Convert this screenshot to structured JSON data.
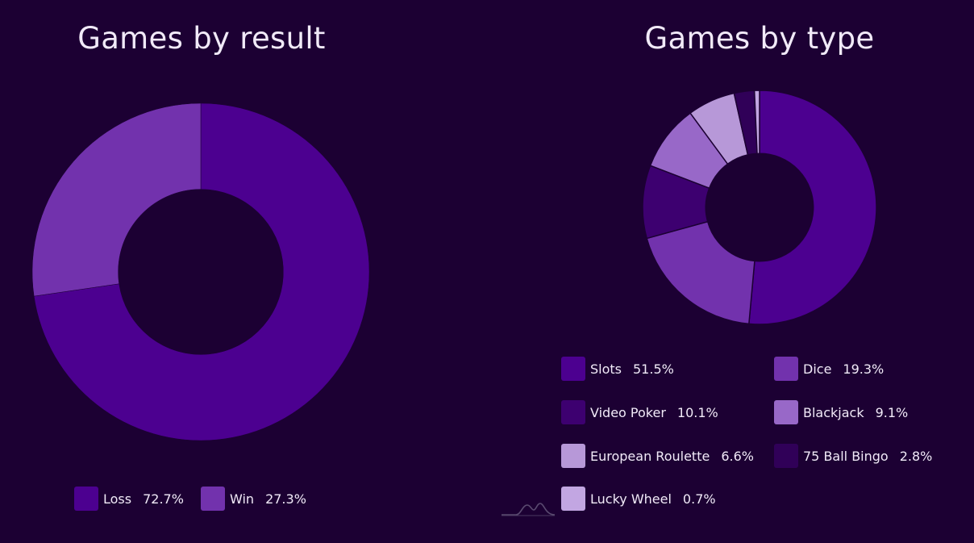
{
  "colors": {
    "background": "#1c0033",
    "text": "#f1eaf8"
  },
  "chart_data": [
    {
      "type": "pie",
      "title": "Games by result",
      "legend_position": "bottom",
      "slices": [
        {
          "label": "Loss",
          "value": 72.7,
          "display": "72.7%",
          "color": "#4c0090"
        },
        {
          "label": "Win",
          "value": 27.3,
          "display": "27.3%",
          "color": "#7232ad"
        }
      ]
    },
    {
      "type": "pie",
      "title": "Games by type",
      "legend_position": "bottom",
      "slices": [
        {
          "label": "Slots",
          "value": 51.5,
          "display": "51.5%",
          "color": "#4c0090"
        },
        {
          "label": "Dice",
          "value": 19.3,
          "display": "19.3%",
          "color": "#7232ad"
        },
        {
          "label": "Video Poker",
          "value": 10.1,
          "display": "10.1%",
          "color": "#3d0070"
        },
        {
          "label": "Blackjack",
          "value": 9.1,
          "display": "9.1%",
          "color": "#9868c8"
        },
        {
          "label": "European Roulette",
          "value": 6.6,
          "display": "6.6%",
          "color": "#b798d8"
        },
        {
          "label": "75 Ball Bingo",
          "value": 2.8,
          "display": "2.8%",
          "color": "#300058"
        },
        {
          "label": "Lucky Wheel",
          "value": 0.7,
          "display": "0.7%",
          "color": "#c2a6e2"
        }
      ]
    }
  ]
}
